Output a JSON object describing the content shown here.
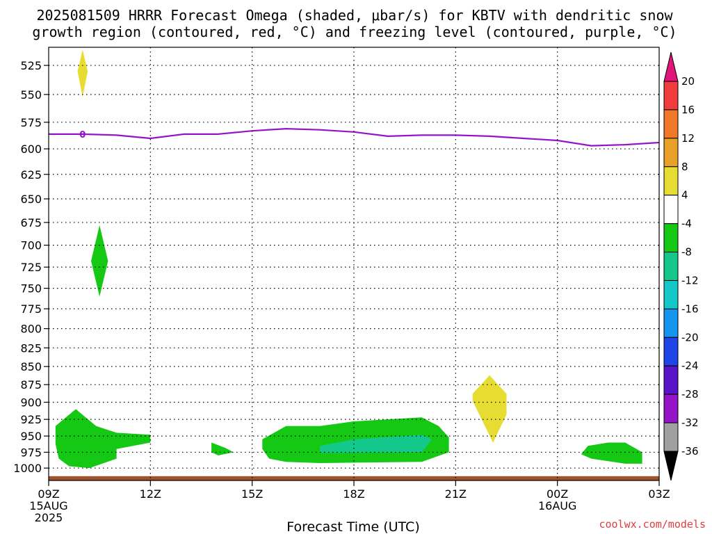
{
  "chart_data": {
    "type": "heatmap",
    "title_lines": [
      "2025081509 HRRR Forecast Omega (shaded, μbar/s) for KBTV with dendritic snow",
      "growth region (contoured, red, °C) and freezing level (contoured, purple, °C)"
    ],
    "xlabel": "Forecast Time (UTC)",
    "ylabel": "",
    "x_ticks": [
      {
        "hour": 9,
        "lines": [
          "09Z",
          "15AUG",
          "2025"
        ]
      },
      {
        "hour": 12,
        "lines": [
          "12Z"
        ]
      },
      {
        "hour": 15,
        "lines": [
          "15Z"
        ]
      },
      {
        "hour": 18,
        "lines": [
          "18Z"
        ]
      },
      {
        "hour": 21,
        "lines": [
          "21Z"
        ]
      },
      {
        "hour": 24,
        "lines": [
          "00Z",
          "16AUG"
        ]
      },
      {
        "hour": 27,
        "lines": [
          "03Z"
        ]
      }
    ],
    "xlim_hours_since_09Z": [
      9,
      27
    ],
    "y_ticks": [
      525,
      550,
      575,
      600,
      625,
      650,
      675,
      700,
      725,
      750,
      775,
      800,
      825,
      850,
      875,
      900,
      925,
      950,
      975,
      1000
    ],
    "ylim_hPa": [
      510,
      1020
    ],
    "y_scale": "log-pressure (inverted)",
    "grid": "dotted",
    "colorbar": {
      "ticks": [
        "20",
        "16",
        "12",
        "8",
        "4",
        "-4",
        "-8",
        "-12",
        "-16",
        "-20",
        "-24",
        "-28",
        "-32",
        "-36"
      ],
      "colors": [
        "#e0147a",
        "#f03c3c",
        "#f07828",
        "#e8a028",
        "#e6dc32",
        "#ffffff",
        "#14c814",
        "#14c88c",
        "#14c8c8",
        "#1496f0",
        "#1e46e6",
        "#5a14c8",
        "#9614c8",
        "#a0a0a0",
        "#000000"
      ]
    },
    "freezing_level": {
      "color": "#9614c8",
      "label": "0",
      "points": [
        [
          9,
          586
        ],
        [
          10,
          586
        ],
        [
          11,
          587
        ],
        [
          12,
          590
        ],
        [
          13,
          586
        ],
        [
          14,
          586
        ],
        [
          15,
          583
        ],
        [
          16,
          581
        ],
        [
          17,
          582
        ],
        [
          18,
          584
        ],
        [
          19,
          588
        ],
        [
          20,
          587
        ],
        [
          21,
          587
        ],
        [
          22,
          588
        ],
        [
          23,
          590
        ],
        [
          24,
          592
        ],
        [
          25,
          597
        ],
        [
          26,
          596
        ],
        [
          27,
          594
        ]
      ],
      "label_at": [
        10,
        586
      ]
    },
    "ground": {
      "color": "#a0522d",
      "pressure_hPa": 1013
    },
    "omega_regions": [
      {
        "level": "4..8",
        "color": "#e6dc32",
        "points": [
          [
            10,
            512
          ],
          [
            10.15,
            530
          ],
          [
            10,
            552
          ],
          [
            9.85,
            530
          ]
        ]
      },
      {
        "level": "-8..-4",
        "color": "#14c814",
        "points": [
          [
            10.5,
            678
          ],
          [
            10.75,
            718
          ],
          [
            10.5,
            760
          ],
          [
            10.25,
            718
          ]
        ]
      },
      {
        "level": "4..8",
        "color": "#e6dc32",
        "points": [
          [
            22.0,
            862
          ],
          [
            22.5,
            888
          ],
          [
            22.5,
            918
          ],
          [
            22.1,
            960
          ],
          [
            21.5,
            898
          ],
          [
            21.5,
            888
          ]
        ]
      },
      {
        "level": "-8..-4",
        "color": "#14c814",
        "points": [
          [
            9.2,
            935
          ],
          [
            9.8,
            910
          ],
          [
            10.4,
            935
          ],
          [
            11.0,
            945
          ],
          [
            12.0,
            948
          ],
          [
            12.0,
            960
          ],
          [
            11.0,
            970
          ],
          [
            11.0,
            985
          ],
          [
            10.2,
            1000
          ],
          [
            9.6,
            997
          ],
          [
            9.3,
            985
          ],
          [
            9.2,
            962
          ]
        ]
      },
      {
        "level": "-8..-4",
        "color": "#14c814",
        "points": [
          [
            13.8,
            960
          ],
          [
            14.2,
            968
          ],
          [
            14.45,
            975
          ],
          [
            14.0,
            980
          ],
          [
            13.8,
            975
          ]
        ]
      },
      {
        "level": "-8..-4",
        "color": "#14c814",
        "points": [
          [
            15.3,
            955
          ],
          [
            16.0,
            935
          ],
          [
            17.0,
            935
          ],
          [
            18.0,
            928
          ],
          [
            20.0,
            922
          ],
          [
            20.5,
            935
          ],
          [
            20.8,
            952
          ],
          [
            20.8,
            975
          ],
          [
            20.0,
            990
          ],
          [
            17.0,
            992
          ],
          [
            16.0,
            990
          ],
          [
            15.5,
            985
          ],
          [
            15.3,
            970
          ]
        ]
      },
      {
        "level": "-12..-8",
        "color": "#14c88c",
        "points": [
          [
            17.0,
            965
          ],
          [
            18.0,
            955
          ],
          [
            20.0,
            948
          ],
          [
            20.3,
            955
          ],
          [
            20.0,
            975
          ],
          [
            17.0,
            976
          ]
        ]
      },
      {
        "level": "-8..-4",
        "color": "#14c814",
        "points": [
          [
            25.5,
            960
          ],
          [
            26.0,
            960
          ],
          [
            26.5,
            975
          ],
          [
            26.5,
            993
          ],
          [
            26.0,
            993
          ],
          [
            25.0,
            985
          ],
          [
            24.7,
            978
          ],
          [
            24.9,
            965
          ]
        ]
      }
    ]
  },
  "credit": "coolwx.com/models"
}
